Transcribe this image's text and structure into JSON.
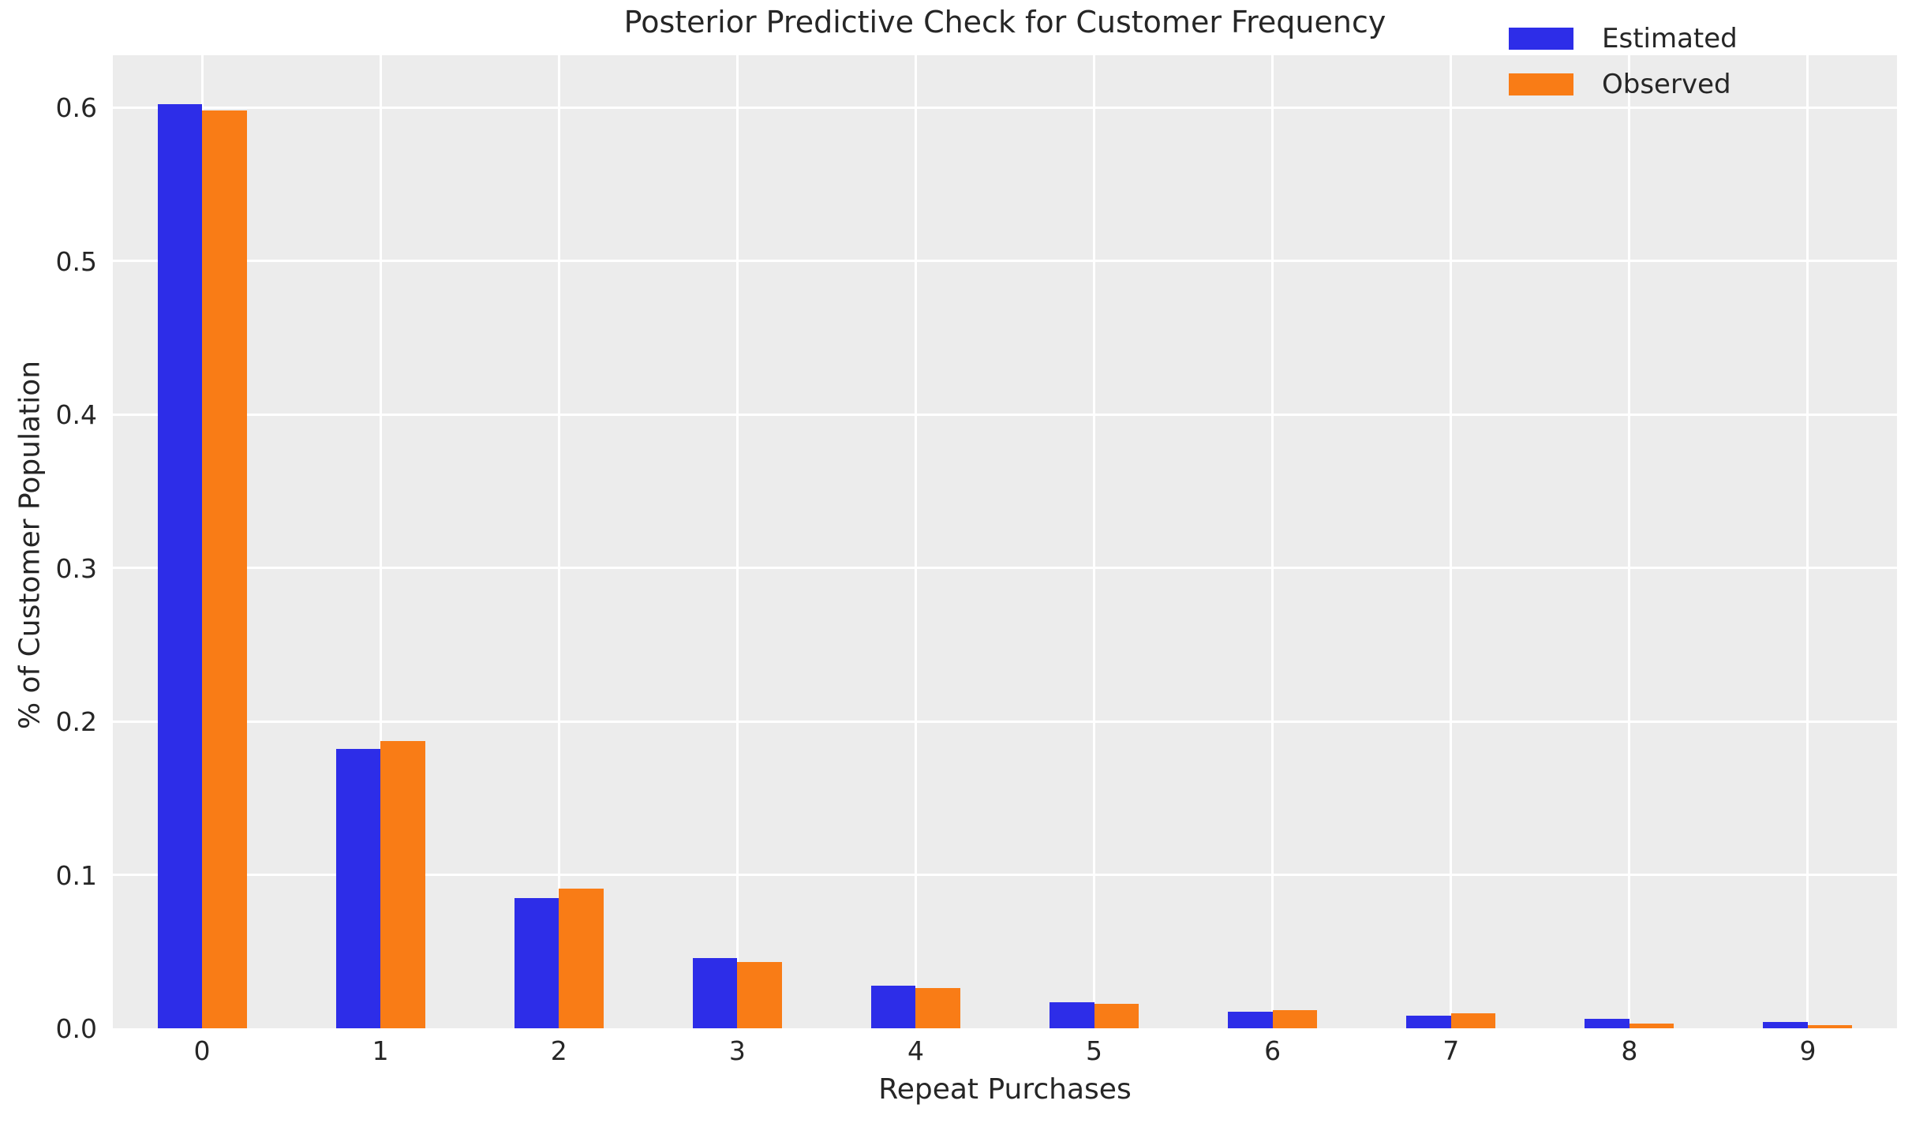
{
  "title": "Posterior Predictive Check for Customer Frequency",
  "chart_data": {
    "type": "bar",
    "title": "Posterior Predictive Check for Customer Frequency",
    "xlabel": "Repeat Purchases",
    "ylabel": "% of Customer Population",
    "categories": [
      "0",
      "1",
      "2",
      "3",
      "4",
      "5",
      "6",
      "7",
      "8",
      "9"
    ],
    "series": [
      {
        "name": "Estimated",
        "color": "#2d2de8",
        "values": [
          0.602,
          0.182,
          0.085,
          0.046,
          0.028,
          0.017,
          0.011,
          0.008,
          0.006,
          0.004
        ]
      },
      {
        "name": "Observed",
        "color": "#f97c16",
        "values": [
          0.598,
          0.187,
          0.091,
          0.043,
          0.026,
          0.016,
          0.012,
          0.01,
          0.003,
          0.002
        ]
      }
    ],
    "ylim": [
      0,
      0.634
    ],
    "yticks": [
      0.0,
      0.1,
      0.2,
      0.3,
      0.4,
      0.5,
      0.6
    ],
    "grid": true,
    "legend_position": "upper right",
    "plot_bg": "#ececec",
    "grid_color": "#ffffff",
    "text_color": "#262626"
  }
}
